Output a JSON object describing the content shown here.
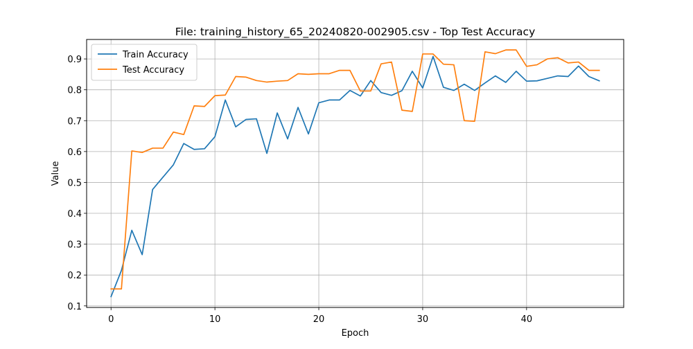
{
  "chart_data": {
    "type": "line",
    "title": "File: training_history_65_20240820-002905.csv - Top Test Accuracy",
    "xlabel": "Epoch",
    "ylabel": "Value",
    "xlim": [
      -2.35,
      49.35
    ],
    "ylim": [
      0.095,
      0.963
    ],
    "xticks": [
      0,
      10,
      20,
      30,
      40
    ],
    "yticks": [
      0.1,
      0.2,
      0.3,
      0.4,
      0.5,
      0.6,
      0.7,
      0.8,
      0.9
    ],
    "grid": true,
    "legend_position": "top-left",
    "x": [
      0,
      1,
      2,
      3,
      4,
      5,
      6,
      7,
      8,
      9,
      10,
      11,
      12,
      13,
      14,
      15,
      16,
      17,
      18,
      19,
      20,
      21,
      22,
      23,
      24,
      25,
      26,
      27,
      28,
      29,
      30,
      31,
      32,
      33,
      34,
      35,
      36,
      37,
      38,
      39,
      40,
      41,
      42,
      43,
      44,
      45,
      46,
      47
    ],
    "series": [
      {
        "name": "Train Accuracy",
        "color": "#1f77b4",
        "values": [
          0.13,
          0.215,
          0.345,
          0.266,
          0.477,
          0.517,
          0.557,
          0.626,
          0.607,
          0.609,
          0.648,
          0.767,
          0.68,
          0.704,
          0.706,
          0.594,
          0.725,
          0.641,
          0.743,
          0.657,
          0.758,
          0.767,
          0.767,
          0.798,
          0.78,
          0.83,
          0.791,
          0.782,
          0.797,
          0.86,
          0.806,
          0.908,
          0.808,
          0.798,
          0.818,
          0.798,
          0.822,
          0.845,
          0.824,
          0.86,
          0.828,
          0.829,
          0.837,
          0.845,
          0.843,
          0.877,
          0.843,
          0.829
        ]
      },
      {
        "name": "Test Accuracy",
        "color": "#ff7f0e",
        "values": [
          0.155,
          0.155,
          0.602,
          0.597,
          0.611,
          0.611,
          0.663,
          0.655,
          0.748,
          0.746,
          0.781,
          0.783,
          0.843,
          0.841,
          0.83,
          0.825,
          0.828,
          0.83,
          0.852,
          0.85,
          0.852,
          0.852,
          0.863,
          0.863,
          0.796,
          0.796,
          0.884,
          0.89,
          0.734,
          0.73,
          0.916,
          0.916,
          0.883,
          0.881,
          0.7,
          0.698,
          0.923,
          0.917,
          0.929,
          0.929,
          0.876,
          0.881,
          0.9,
          0.904,
          0.887,
          0.89,
          0.863,
          0.863
        ]
      }
    ]
  }
}
